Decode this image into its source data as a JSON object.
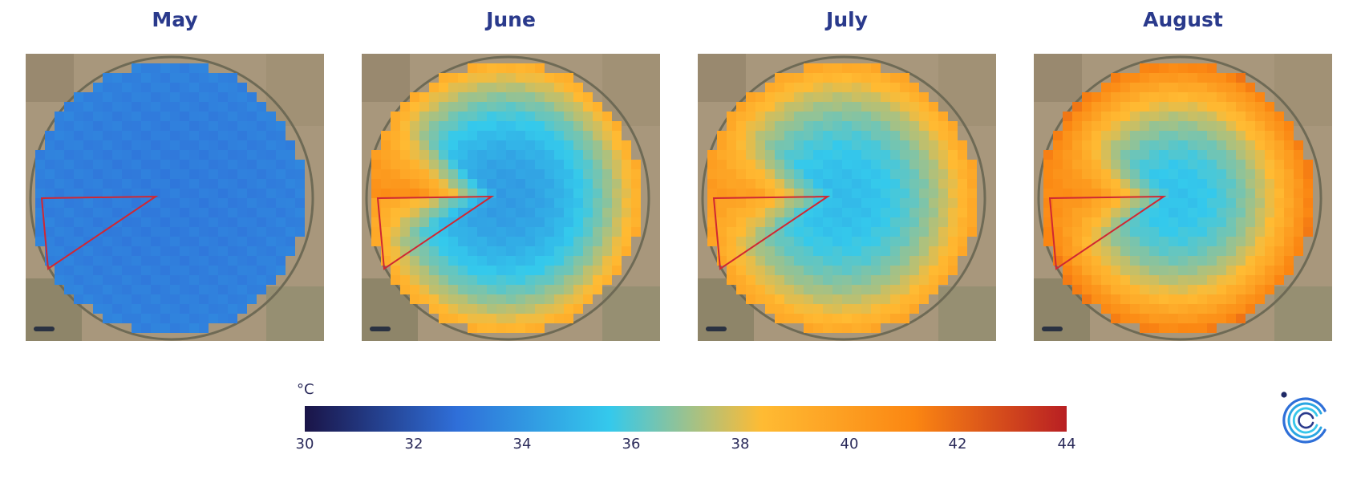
{
  "panels": [
    {
      "title": "May",
      "center_temp": 33.2,
      "edge_temp": 33.4,
      "wedge_temp": 33.3,
      "hot_dir": 3.14
    },
    {
      "title": "June",
      "center_temp": 34.2,
      "edge_temp": 39.2,
      "wedge_temp": 40.6,
      "hot_dir": 3.3
    },
    {
      "title": "July",
      "center_temp": 35.2,
      "edge_temp": 39.6,
      "wedge_temp": 40.3,
      "hot_dir": 3.2
    },
    {
      "title": "August",
      "center_temp": 35.4,
      "edge_temp": 41.6,
      "wedge_temp": 40.9,
      "hot_dir": 3.2
    }
  ],
  "colorbar": {
    "unit": "°C",
    "min": 30,
    "max": 44,
    "ticks": [
      "30",
      "32",
      "34",
      "36",
      "38",
      "40",
      "42",
      "44"
    ],
    "stops": [
      "#1a1447",
      "#2f6fd9",
      "#34c9ec",
      "#ffbb33",
      "#fb8612",
      "#b81f23"
    ]
  },
  "legend_icon": "company-logo"
}
